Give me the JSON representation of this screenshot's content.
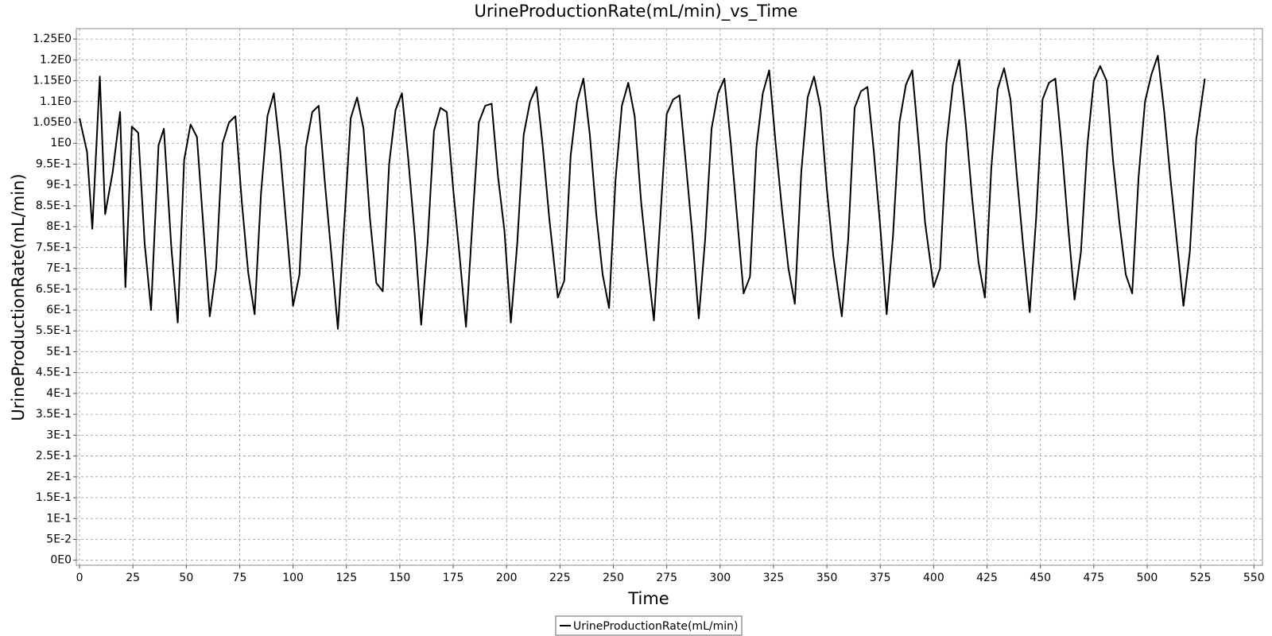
{
  "chart_data": {
    "type": "line",
    "title": "UrineProductionRate(mL/min)_vs_Time",
    "x_label": "Time",
    "y_label": "UrineProductionRate(mL/min)",
    "x": [
      0,
      3.5,
      6,
      9.5,
      12,
      15.5,
      19,
      21.5,
      24.5,
      27.5,
      30.5,
      33.5,
      37,
      39.5,
      43,
      46,
      49,
      52,
      55,
      61,
      64,
      67,
      70,
      73,
      76,
      79,
      82,
      85,
      88,
      91,
      94,
      100,
      103,
      106,
      109,
      112,
      115,
      118,
      121,
      124,
      127,
      130,
      133,
      136,
      139,
      142,
      145,
      148,
      151,
      154,
      157,
      160,
      163,
      166,
      169,
      172,
      175,
      178,
      181,
      184,
      187,
      190,
      193,
      196,
      199,
      202,
      205,
      208,
      211,
      214,
      217,
      220,
      224,
      227,
      230,
      233,
      236,
      239,
      242,
      245,
      248,
      251,
      254,
      257,
      260,
      263,
      266,
      269,
      272,
      275,
      278,
      281,
      284,
      287,
      290,
      293,
      296,
      299,
      302,
      305,
      308,
      311,
      314,
      317,
      320,
      323,
      326,
      329,
      332,
      335,
      338,
      341,
      344,
      347,
      350,
      353,
      357,
      360,
      363,
      366,
      369,
      372,
      375,
      378,
      381,
      384,
      387,
      390,
      393,
      396,
      400,
      403,
      406,
      409,
      412,
      415,
      418,
      421,
      424,
      427,
      430,
      433,
      436,
      439,
      442,
      445,
      448,
      451,
      454,
      457,
      460,
      463,
      466,
      469,
      472,
      475,
      478,
      481,
      484,
      487,
      490,
      493,
      496,
      499,
      502,
      505,
      508,
      511,
      514,
      517,
      520,
      523,
      527
    ],
    "series": [
      {
        "name": "UrineProductionRate(mL/min)",
        "color": "#000000",
        "values": [
          1.06,
          0.98,
          0.795,
          1.16,
          0.83,
          0.93,
          1.075,
          0.655,
          1.04,
          1.025,
          0.76,
          0.6,
          0.995,
          1.035,
          0.75,
          0.57,
          0.96,
          1.045,
          1.015,
          0.585,
          0.7,
          1.0,
          1.05,
          1.065,
          0.86,
          0.69,
          0.59,
          0.88,
          1.065,
          1.12,
          0.98,
          0.61,
          0.685,
          0.99,
          1.075,
          1.09,
          0.9,
          0.73,
          0.555,
          0.81,
          1.06,
          1.11,
          1.035,
          0.82,
          0.665,
          0.645,
          0.95,
          1.08,
          1.12,
          0.96,
          0.78,
          0.565,
          0.76,
          1.03,
          1.085,
          1.075,
          0.89,
          0.73,
          0.56,
          0.81,
          1.05,
          1.09,
          1.095,
          0.92,
          0.79,
          0.57,
          0.76,
          1.02,
          1.1,
          1.135,
          0.99,
          0.82,
          0.63,
          0.67,
          0.97,
          1.1,
          1.155,
          1.02,
          0.83,
          0.685,
          0.605,
          0.91,
          1.09,
          1.145,
          1.065,
          0.86,
          0.71,
          0.575,
          0.82,
          1.07,
          1.105,
          1.115,
          0.95,
          0.78,
          0.58,
          0.77,
          1.035,
          1.12,
          1.155,
          1.0,
          0.82,
          0.64,
          0.68,
          0.99,
          1.12,
          1.175,
          1.0,
          0.84,
          0.7,
          0.615,
          0.93,
          1.11,
          1.16,
          1.085,
          0.89,
          0.73,
          0.585,
          0.77,
          1.085,
          1.125,
          1.135,
          0.98,
          0.8,
          0.59,
          0.78,
          1.05,
          1.14,
          1.175,
          1.0,
          0.81,
          0.655,
          0.7,
          1.0,
          1.14,
          1.2,
          1.05,
          0.87,
          0.715,
          0.63,
          0.94,
          1.13,
          1.18,
          1.105,
          0.92,
          0.75,
          0.595,
          0.82,
          1.105,
          1.145,
          1.155,
          0.99,
          0.8,
          0.625,
          0.74,
          0.995,
          1.15,
          1.185,
          1.15,
          0.96,
          0.81,
          0.685,
          0.64,
          0.92,
          1.1,
          1.165,
          1.21,
          1.075,
          0.91,
          0.76,
          0.61,
          0.74,
          1.01,
          1.155
        ]
      }
    ],
    "xlim": [
      -1.5,
      554
    ],
    "ylim": [
      -0.012,
      1.275
    ],
    "xticks": [
      0,
      25,
      50,
      75,
      100,
      125,
      150,
      175,
      200,
      225,
      250,
      275,
      300,
      325,
      350,
      375,
      400,
      425,
      450,
      475,
      500,
      525,
      550
    ],
    "yticks": [
      {
        "value": 0,
        "label": "0E0"
      },
      {
        "value": 0.05,
        "label": "5E-2"
      },
      {
        "value": 0.1,
        "label": "1E-1"
      },
      {
        "value": 0.15,
        "label": "1.5E-1"
      },
      {
        "value": 0.2,
        "label": "2E-1"
      },
      {
        "value": 0.25,
        "label": "2.5E-1"
      },
      {
        "value": 0.3,
        "label": "3E-1"
      },
      {
        "value": 0.35,
        "label": "3.5E-1"
      },
      {
        "value": 0.4,
        "label": "4E-1"
      },
      {
        "value": 0.45,
        "label": "4.5E-1"
      },
      {
        "value": 0.5,
        "label": "5E-1"
      },
      {
        "value": 0.55,
        "label": "5.5E-1"
      },
      {
        "value": 0.6,
        "label": "6E-1"
      },
      {
        "value": 0.65,
        "label": "6.5E-1"
      },
      {
        "value": 0.7,
        "label": "7E-1"
      },
      {
        "value": 0.75,
        "label": "7.5E-1"
      },
      {
        "value": 0.8,
        "label": "8E-1"
      },
      {
        "value": 0.85,
        "label": "8.5E-1"
      },
      {
        "value": 0.9,
        "label": "9E-1"
      },
      {
        "value": 0.95,
        "label": "9.5E-1"
      },
      {
        "value": 1,
        "label": "1E0"
      },
      {
        "value": 1.05,
        "label": "1.05E0"
      },
      {
        "value": 1.1,
        "label": "1.1E0"
      },
      {
        "value": 1.15,
        "label": "1.15E0"
      },
      {
        "value": 1.2,
        "label": "1.2E0"
      },
      {
        "value": 1.25,
        "label": "1.25E0"
      }
    ],
    "grid": true,
    "legend": "bottom"
  }
}
